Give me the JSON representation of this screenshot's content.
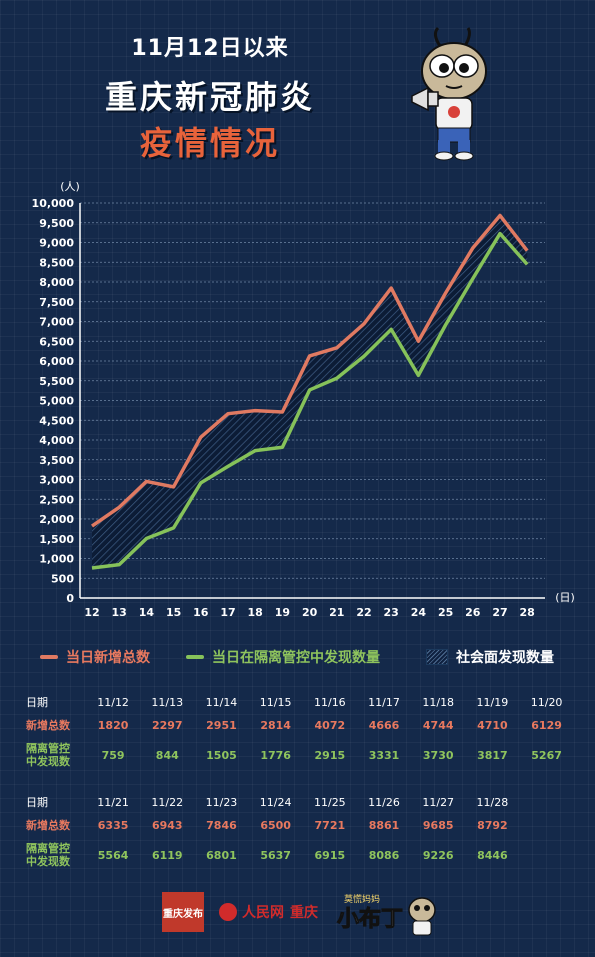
{
  "header": {
    "line1": "11月12日以来",
    "line2": "重庆新冠肺炎",
    "line3": "疫情情况"
  },
  "colors": {
    "background": "#14294a",
    "total": "#e07a62",
    "isolated": "#86c25a",
    "accent": "#e8633b"
  },
  "chart_data": {
    "type": "line",
    "y_unit": "(人)",
    "x_unit": "(日)",
    "categories": [
      "12",
      "13",
      "14",
      "15",
      "16",
      "17",
      "18",
      "19",
      "20",
      "21",
      "22",
      "23",
      "24",
      "25",
      "26",
      "27",
      "28"
    ],
    "ylim": [
      0,
      10000
    ],
    "y_ticks": [
      "0",
      "500",
      "1,000",
      "1,500",
      "2,000",
      "2,500",
      "3,000",
      "3,500",
      "4,000",
      "4,500",
      "5,000",
      "5,500",
      "6,000",
      "6,500",
      "7,000",
      "7,500",
      "8,000",
      "8,500",
      "9,000",
      "9,500",
      "10,000"
    ],
    "grid": true,
    "legend_position": "bottom",
    "series": [
      {
        "name": "当日新增总数",
        "color": "#e07a62",
        "values": [
          1820,
          2297,
          2951,
          2814,
          4072,
          4666,
          4744,
          4710,
          6129,
          6335,
          6943,
          7846,
          6500,
          7721,
          8861,
          9685,
          8792
        ]
      },
      {
        "name": "当日在隔离管控中发现数量",
        "color": "#86c25a",
        "values": [
          759,
          844,
          1505,
          1776,
          2915,
          3331,
          3730,
          3817,
          5267,
          5564,
          6119,
          6801,
          5637,
          6915,
          8086,
          9226,
          8446
        ]
      }
    ],
    "area_label": "社会面发现数量"
  },
  "table": {
    "date_label": "日期",
    "total_label": "新增总数",
    "iso_label_1": "隔离管控",
    "iso_label_2": "中发现数",
    "block1": {
      "dates": [
        "11/12",
        "11/13",
        "11/14",
        "11/15",
        "11/16",
        "11/17",
        "11/18",
        "11/19",
        "11/20"
      ],
      "totals": [
        "1820",
        "2297",
        "2951",
        "2814",
        "4072",
        "4666",
        "4744",
        "4710",
        "6129"
      ],
      "isolated": [
        "759",
        "844",
        "1505",
        "1776",
        "2915",
        "3331",
        "3730",
        "3817",
        "5267"
      ]
    },
    "block2": {
      "dates": [
        "11/21",
        "11/22",
        "11/23",
        "11/24",
        "11/25",
        "11/26",
        "11/27",
        "11/28"
      ],
      "totals": [
        "6335",
        "6943",
        "7846",
        "6500",
        "7721",
        "8861",
        "9685",
        "8792"
      ],
      "isolated": [
        "5564",
        "6119",
        "6801",
        "5637",
        "6915",
        "8086",
        "9226",
        "8446"
      ]
    }
  },
  "footer": {
    "logo1_text": "重庆发布",
    "logo2_text": "人民网",
    "logo2_city": "重庆",
    "logo3_small": "莫慌妈妈",
    "logo3_big": "小布丁"
  }
}
